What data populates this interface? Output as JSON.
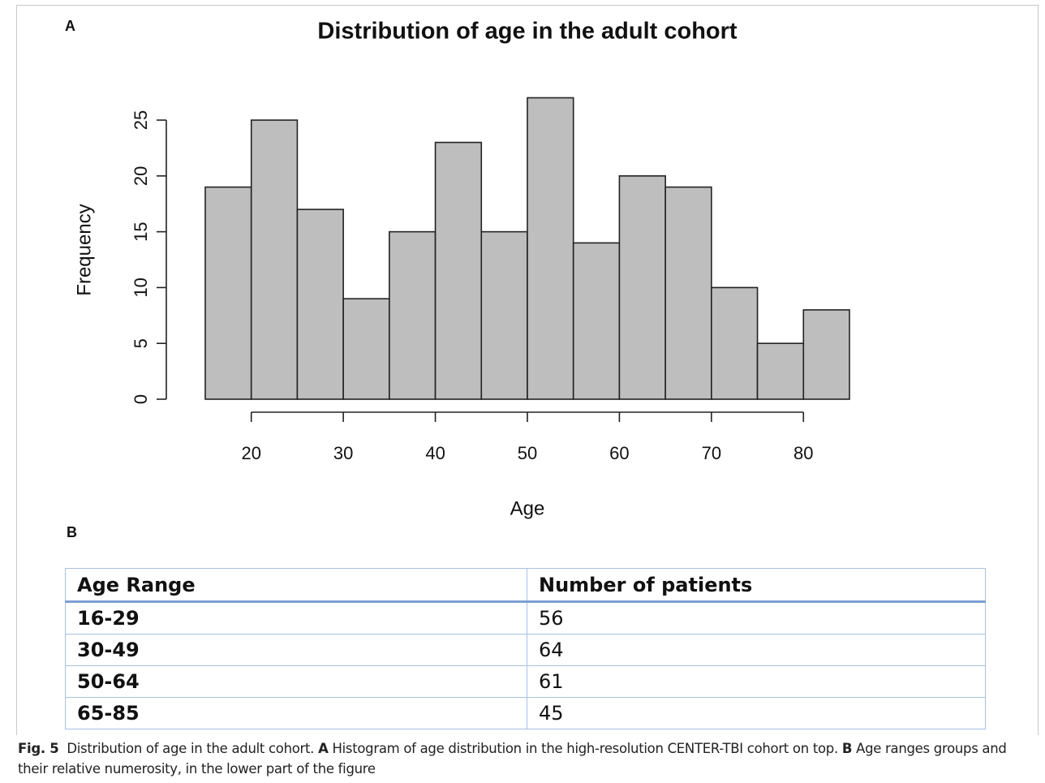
{
  "panel_labels": {
    "a": "A",
    "b": "B"
  },
  "chart_data": {
    "type": "histogram",
    "title": "Distribution of age in the adult cohort",
    "x_label": "Age",
    "y_label": "Frequency",
    "bins": [
      15,
      20,
      25,
      30,
      35,
      40,
      45,
      50,
      55,
      60,
      65,
      70,
      75,
      80,
      85
    ],
    "values": [
      19,
      25,
      17,
      9,
      15,
      23,
      15,
      27,
      14,
      20,
      19,
      10,
      5,
      8
    ],
    "color": "#bebebe",
    "xlim": [
      15,
      85
    ],
    "xticks": [
      20,
      30,
      40,
      50,
      60,
      70,
      80
    ],
    "ylim": [
      0,
      27
    ],
    "yticks": [
      0,
      5,
      10,
      15,
      20,
      25
    ],
    "grid": false
  },
  "table": {
    "header": [
      "Age Range",
      "Number of patients"
    ],
    "rows": [
      [
        "16-29",
        56
      ],
      [
        "30-49",
        64
      ],
      [
        "50-64",
        61
      ],
      [
        "65-85",
        45
      ]
    ]
  },
  "caption": {
    "label": "Fig. 5",
    "text": "Distribution of age in the adult cohort.",
    "a_label": "A",
    "a_text": "Histogram of age distribution in the high-resolution CENTER-TBI cohort on top.",
    "b_label": "B",
    "b_text": "Age ranges groups and their relative numerosity, in the lower part of the figure"
  }
}
